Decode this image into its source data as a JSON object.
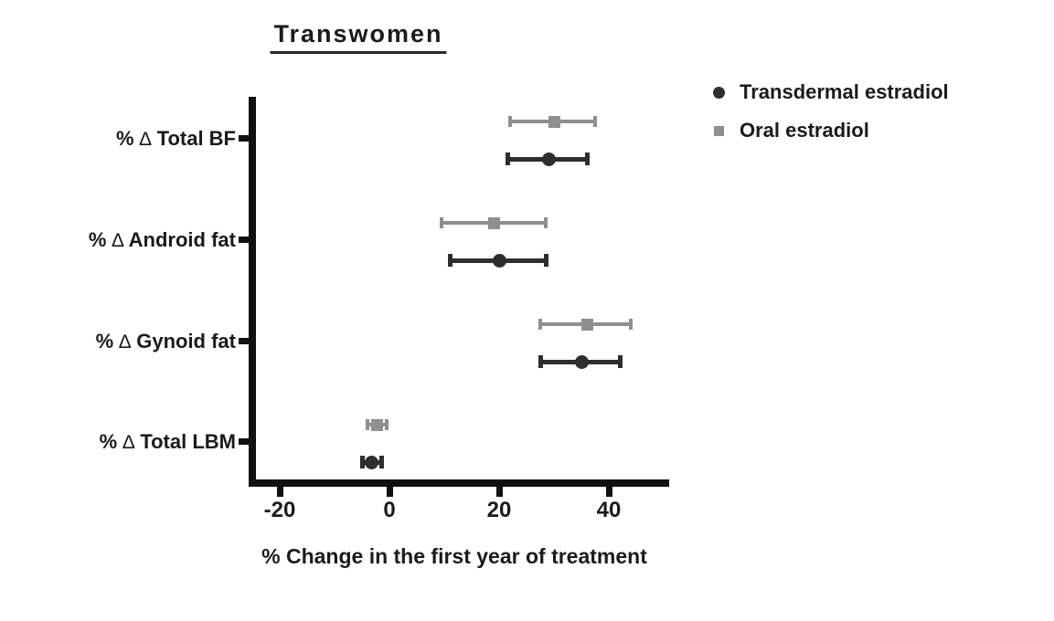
{
  "title": "Transwomen",
  "x_axis_title": "% Change in the first year of treatment",
  "colors": {
    "transdermal": "#2e2e2e",
    "oral": "#8f8f8f",
    "axis": "#111111",
    "text": "#1b1b1b",
    "background": "#ffffff"
  },
  "chart_data": {
    "type": "scatter",
    "subtype": "horizontal-dot-plot-with-error-bars",
    "title": "Transwomen",
    "xlabel": "% Change in the first year of treatment",
    "ylabel": "",
    "grid": false,
    "legend_position": "top-right",
    "categories": [
      "% ∆ Total BF",
      "% ∆ Android fat",
      "% ∆ Gynoid fat",
      "% ∆ Total LBM"
    ],
    "x_ticks": [
      -20,
      0,
      20,
      40
    ],
    "x_tick_labels": [
      "-20",
      "0",
      "20",
      "40"
    ],
    "xlim": [
      -26,
      51
    ],
    "series": [
      {
        "name": "Transdermal estradiol",
        "marker": "circle",
        "color": "#2e2e2e",
        "values": [
          {
            "category": "% ∆ Total BF",
            "mean": 29,
            "lo": 21.5,
            "hi": 36
          },
          {
            "category": "% ∆ Android fat",
            "mean": 20,
            "lo": 11,
            "hi": 28.5
          },
          {
            "category": "% ∆ Gynoid fat",
            "mean": 35,
            "lo": 27.5,
            "hi": 42
          },
          {
            "category": "% ∆ Total LBM",
            "mean": -3.3,
            "lo": -5,
            "hi": -1.5
          }
        ]
      },
      {
        "name": "Oral estradiol",
        "marker": "square",
        "color": "#8f8f8f",
        "values": [
          {
            "category": "% ∆ Total BF",
            "mean": 30,
            "lo": 22,
            "hi": 37.5
          },
          {
            "category": "% ∆ Android fat",
            "mean": 19,
            "lo": 9.5,
            "hi": 28.5
          },
          {
            "category": "% ∆ Gynoid fat",
            "mean": 36,
            "lo": 27.5,
            "hi": 44
          },
          {
            "category": "% ∆ Total LBM",
            "mean": -2.2,
            "lo": -4,
            "hi": -0.5
          }
        ]
      }
    ]
  }
}
